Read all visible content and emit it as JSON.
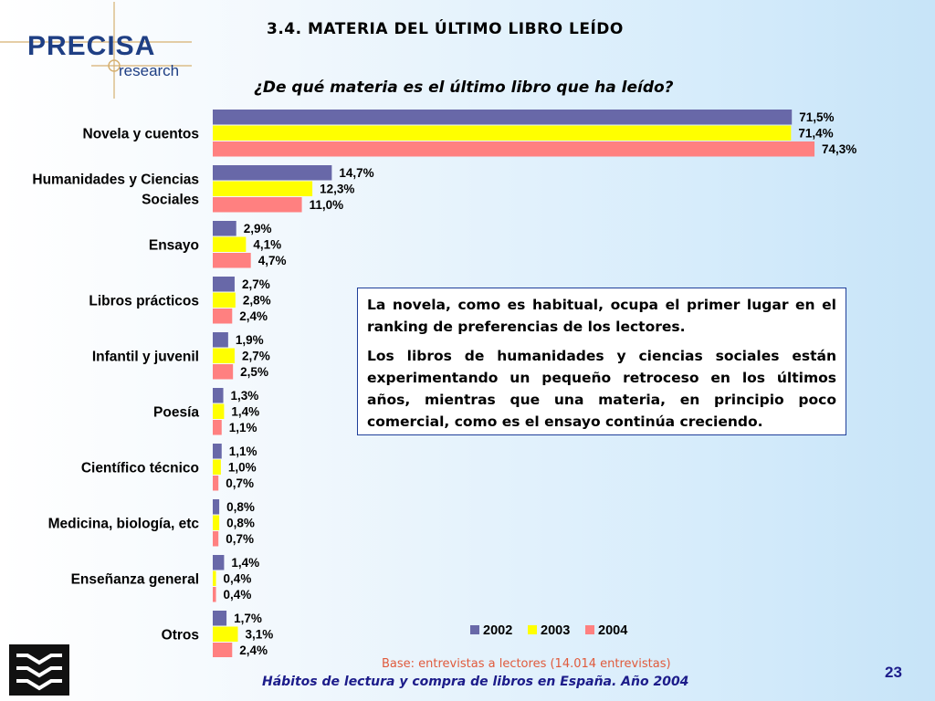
{
  "logo": {
    "name": "PRECISA",
    "sub": "research"
  },
  "slide_title": "3.4. MATERIA DEL ÚLTIMO LIBRO LEÍDO",
  "textbox": {
    "p1": "La novela, como es habitual, ocupa el primer lugar en el ranking de preferencias de los lectores.",
    "p2": "Los libros de humanidades y ciencias sociales están experimentando un pequeño retroceso en los últimos años, mientras que una materia, en principio poco comercial, como es el ensayo continúa creciendo."
  },
  "base_note": "Base: entrevistas a lectores (14.014 entrevistas)",
  "footer": "Hábitos de lectura y compra de libros en España. Año 2004",
  "page_number": "23",
  "colors": {
    "s2002": "#6868a8",
    "s2003": "#ffff00",
    "s2004": "#ff8080"
  },
  "chart_data": {
    "type": "bar",
    "orientation": "horizontal",
    "title": "¿De qué materia es el último libro que ha leído?",
    "categories": [
      [
        "Novela y cuentos"
      ],
      [
        "Humanidades y Ciencias",
        "Sociales"
      ],
      [
        "Ensayo"
      ],
      [
        "Libros prácticos"
      ],
      [
        "Infantil y juvenil"
      ],
      [
        "Poesía"
      ],
      [
        "Científico técnico"
      ],
      [
        "Medicina, biología, etc"
      ],
      [
        "Enseñanza general"
      ],
      [
        "Otros"
      ]
    ],
    "series": [
      {
        "name": "2002",
        "values": [
          71.5,
          14.7,
          2.9,
          2.7,
          1.9,
          1.3,
          1.1,
          0.8,
          1.4,
          1.7
        ],
        "labels": [
          "71,5%",
          "14,7%",
          "2,9%",
          "2,7%",
          "1,9%",
          "1,3%",
          "1,1%",
          "0,8%",
          "1,4%",
          "1,7%"
        ]
      },
      {
        "name": "2003",
        "values": [
          71.4,
          12.3,
          4.1,
          2.8,
          2.7,
          1.4,
          1.0,
          0.8,
          0.4,
          3.1
        ],
        "labels": [
          "71,4%",
          "12,3%",
          "4,1%",
          "2,8%",
          "2,7%",
          "1,4%",
          "1,0%",
          "0,8%",
          "0,4%",
          "3,1%"
        ]
      },
      {
        "name": "2004",
        "values": [
          74.3,
          11.0,
          4.7,
          2.4,
          2.5,
          1.1,
          0.7,
          0.7,
          0.4,
          2.4
        ],
        "labels": [
          "74,3%",
          "11,0%",
          "4,7%",
          "2,4%",
          "2,5%",
          "1,1%",
          "0,7%",
          "0,7%",
          "0,4%",
          "2,4%"
        ]
      }
    ],
    "xlim": [
      0,
      75
    ],
    "legend": "bottom-right",
    "grid": false
  }
}
